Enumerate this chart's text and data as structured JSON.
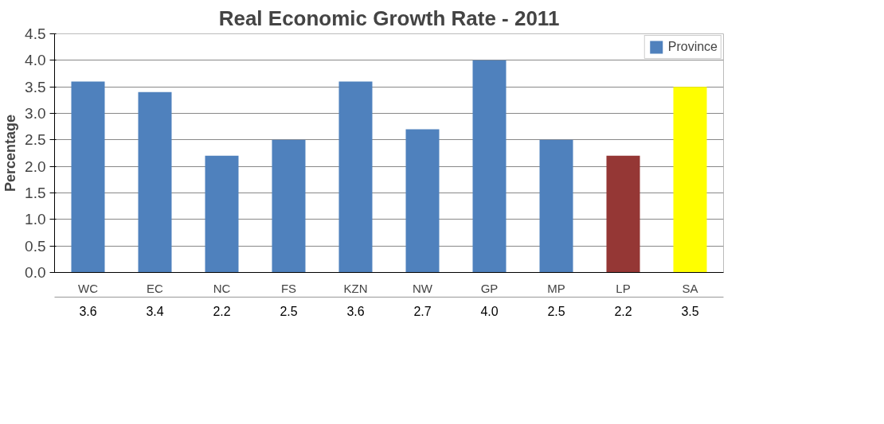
{
  "chart_data": {
    "type": "bar",
    "title": "Real Economic Growth Rate - 2011",
    "ylabel": "Percentage",
    "categories": [
      "WC",
      "EC",
      "NC",
      "FS",
      "KZN",
      "NW",
      "GP",
      "MP",
      "LP",
      "SA"
    ],
    "series": [
      {
        "name": "Province",
        "color": "#4f81bd",
        "colors": [
          "#4f81bd",
          "#4f81bd",
          "#4f81bd",
          "#4f81bd",
          "#4f81bd",
          "#4f81bd",
          "#4f81bd",
          "#4f81bd",
          "#953735",
          "#ffff00"
        ],
        "values": [
          3.6,
          3.4,
          2.2,
          2.5,
          3.6,
          2.7,
          4.0,
          2.5,
          2.2,
          3.5
        ],
        "value_labels": [
          "3.6",
          "3.4",
          "2.2",
          "2.5",
          "3.6",
          "2.7",
          "4.0",
          "2.5",
          "2.2",
          "3.5"
        ]
      }
    ],
    "ylim": [
      0,
      4.5
    ],
    "yticks": [
      {
        "value": 0,
        "label": "0.0"
      },
      0.5,
      {
        "value": 1,
        "label": "1.0"
      },
      1.5,
      {
        "value": 2,
        "label": "2.0"
      },
      2.5,
      {
        "value": 3,
        "label": "3.0"
      },
      3.5,
      {
        "value": 4,
        "label": "4.0"
      },
      4.5
    ],
    "grid": "y",
    "legend": "top right"
  }
}
